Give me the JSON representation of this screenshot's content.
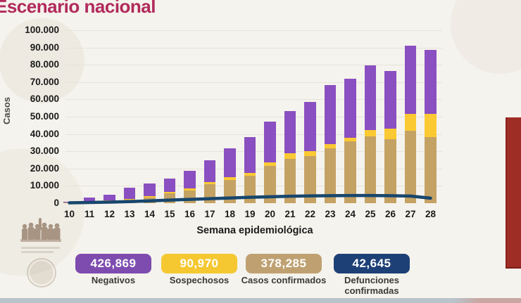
{
  "title": "Escenario nacional",
  "y_axis": {
    "title": "Casos",
    "tick_labels": [
      "100.000",
      "90.000",
      "80.000",
      "70.000",
      "60.000",
      "50.000",
      "40.000",
      "30.000",
      "20.000",
      "10.000",
      "0"
    ]
  },
  "x_axis": {
    "title": "Semana epidemiológica"
  },
  "chart_data": {
    "type": "bar",
    "subtype": "stacked-bars-with-line-overlay",
    "title": "Escenario nacional",
    "xlabel": "Semana epidemiológica",
    "ylabel": "Casos",
    "ylim": [
      0,
      100000
    ],
    "ytick_step": 10000,
    "grid": "horizontal",
    "legend_position": "bottom",
    "categories": [
      "10",
      "11",
      "12",
      "13",
      "14",
      "15",
      "16",
      "17",
      "18",
      "19",
      "20",
      "21",
      "22",
      "23",
      "24",
      "25",
      "26",
      "27",
      "28"
    ],
    "series": [
      {
        "name": "Casos confirmados",
        "color": "#c4a264",
        "values": [
          300,
          800,
          1300,
          2100,
          3100,
          5800,
          7400,
          11000,
          13500,
          16000,
          21400,
          25700,
          27100,
          31600,
          35600,
          38700,
          37200,
          41700,
          38300
        ]
      },
      {
        "name": "Sospechosos",
        "color": "#fbca32",
        "values": [
          100,
          200,
          300,
          500,
          800,
          900,
          1000,
          1300,
          1600,
          1600,
          2000,
          3200,
          2900,
          2700,
          2300,
          3700,
          5900,
          9800,
          13200
        ]
      },
      {
        "name": "Negativos",
        "color": "#8a4fc0",
        "values": [
          500,
          2200,
          3400,
          6400,
          7400,
          7500,
          10500,
          12500,
          16700,
          20700,
          23800,
          24400,
          28700,
          33800,
          33900,
          37300,
          33200,
          39700,
          37000
        ]
      }
    ],
    "line": {
      "name": "Defunciones confirmadas",
      "color": "#17466d",
      "values": [
        200,
        400,
        600,
        900,
        1300,
        1800,
        2200,
        2600,
        3000,
        3400,
        3700,
        4000,
        4200,
        4300,
        4400,
        4400,
        4300,
        4100,
        2900
      ]
    }
  },
  "legend": {
    "items": [
      {
        "value": "426,869",
        "label": "Negativos",
        "color": "#7e4caf"
      },
      {
        "value": "90,970",
        "label": "Sospechosos",
        "color": "#f5c832"
      },
      {
        "value": "378,285",
        "label": "Casos confirmados",
        "color": "#bfa171"
      },
      {
        "value": "42,645",
        "label": "Defunciones confirmadas",
        "color": "#1d4076"
      }
    ]
  }
}
